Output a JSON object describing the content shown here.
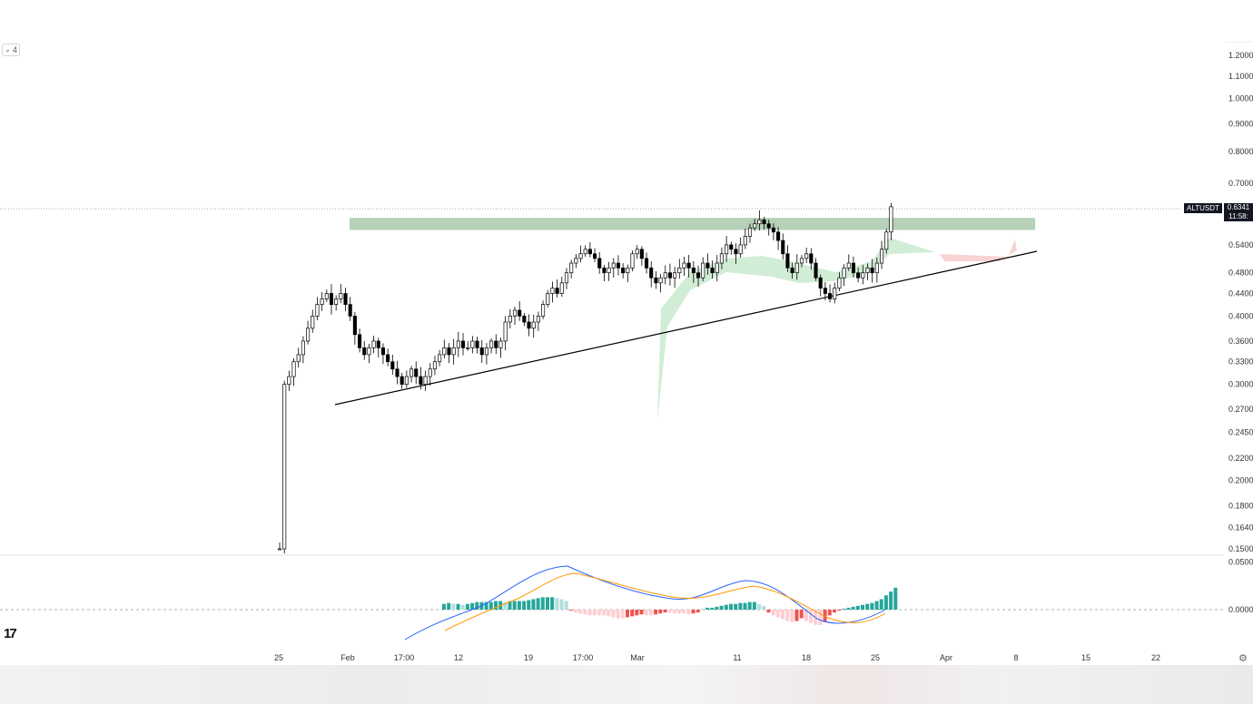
{
  "indicator_button": {
    "count": "4",
    "chevron_icon": "chevron-down-icon"
  },
  "logo": {
    "text": "17",
    "name": "tradingview-logo"
  },
  "price_label": {
    "symbol": "ALTUSDT",
    "price": "0.6341",
    "countdown": "11:58:"
  },
  "settings_icon": "gear-icon",
  "colors": {
    "candle_up": "#ffffff",
    "candle_down": "#000000",
    "resistance_zone": "#a9c9ab",
    "cloud_green": "#bfe5c3",
    "cloud_red": "#f5b5b5",
    "macd_line": "#2962ff",
    "signal_line": "#ff9800",
    "hist_up_strong": "#26a69a",
    "hist_up_weak": "#b2dfdb",
    "hist_down_strong": "#ef5350",
    "hist_down_weak": "#ffcdd2"
  },
  "chart_data": {
    "type": "candlestick",
    "symbol": "ALTUSDT",
    "y_scale": "log",
    "price_axis_labels": [
      "1.2000",
      "1.1000",
      "1.0000",
      "0.9000",
      "0.8000",
      "0.7000",
      "0.5400",
      "0.4800",
      "0.4400",
      "0.4000",
      "0.3600",
      "0.3300",
      "0.3000",
      "0.2700",
      "0.2450",
      "0.2200",
      "0.2000",
      "0.1800",
      "0.1640",
      "0.1500"
    ],
    "macd_axis_labels": [
      "0.0500",
      "0.0000"
    ],
    "time_axis_labels": [
      "25",
      "Feb",
      "17:00",
      "12",
      "19",
      "17:00",
      "Mar",
      "11",
      "18",
      "25",
      "Apr",
      "8",
      "15",
      "22"
    ],
    "last_price": 0.6341,
    "resistance_zone": {
      "low": 0.575,
      "high": 0.605
    },
    "trendline": {
      "start": {
        "date": "Jan 28",
        "price": 0.28
      },
      "end": {
        "date": "Apr 8",
        "price": 0.525
      }
    },
    "closes": [
      0.15,
      0.3,
      0.31,
      0.33,
      0.34,
      0.36,
      0.38,
      0.4,
      0.42,
      0.43,
      0.44,
      0.42,
      0.43,
      0.44,
      0.42,
      0.4,
      0.37,
      0.35,
      0.34,
      0.35,
      0.36,
      0.35,
      0.34,
      0.33,
      0.32,
      0.31,
      0.3,
      0.31,
      0.32,
      0.31,
      0.3,
      0.31,
      0.32,
      0.33,
      0.34,
      0.35,
      0.34,
      0.35,
      0.36,
      0.35,
      0.35,
      0.36,
      0.35,
      0.34,
      0.35,
      0.36,
      0.35,
      0.36,
      0.39,
      0.4,
      0.41,
      0.4,
      0.39,
      0.38,
      0.39,
      0.4,
      0.42,
      0.44,
      0.45,
      0.44,
      0.46,
      0.48,
      0.5,
      0.51,
      0.52,
      0.53,
      0.52,
      0.51,
      0.49,
      0.48,
      0.49,
      0.5,
      0.49,
      0.48,
      0.49,
      0.52,
      0.53,
      0.51,
      0.49,
      0.47,
      0.46,
      0.47,
      0.48,
      0.47,
      0.48,
      0.49,
      0.5,
      0.49,
      0.48,
      0.47,
      0.5,
      0.49,
      0.48,
      0.5,
      0.52,
      0.54,
      0.53,
      0.52,
      0.54,
      0.56,
      0.58,
      0.59,
      0.6,
      0.59,
      0.58,
      0.57,
      0.55,
      0.52,
      0.49,
      0.48,
      0.5,
      0.51,
      0.52,
      0.5,
      0.47,
      0.45,
      0.44,
      0.43,
      0.45,
      0.47,
      0.49,
      0.5,
      0.48,
      0.47,
      0.48,
      0.49,
      0.48,
      0.5,
      0.53,
      0.57,
      0.6341
    ],
    "macd_histogram": [
      0.006,
      0.007,
      0.006,
      0.006,
      0.005,
      0.006,
      0.007,
      0.008,
      0.008,
      0.008,
      0.008,
      0.009,
      0.009,
      0.008,
      0.009,
      0.009,
      0.009,
      0.009,
      0.01,
      0.011,
      0.012,
      0.013,
      0.013,
      0.013,
      0.012,
      0.011,
      0.009,
      -0.001,
      -0.003,
      -0.004,
      -0.005,
      -0.006,
      -0.006,
      -0.006,
      -0.006,
      -0.007,
      -0.008,
      -0.009,
      -0.009,
      -0.008,
      -0.007,
      -0.006,
      -0.005,
      -0.006,
      -0.006,
      -0.005,
      -0.004,
      -0.003,
      -0.003,
      -0.004,
      -0.004,
      -0.004,
      -0.005,
      -0.004,
      -0.003,
      0.001,
      0.002,
      0.002,
      0.003,
      0.004,
      0.005,
      0.006,
      0.006,
      0.007,
      0.007,
      0.008,
      0.008,
      0.006,
      0.004,
      -0.003,
      -0.006,
      -0.008,
      -0.01,
      -0.012,
      -0.013,
      -0.012,
      -0.009,
      -0.012,
      -0.014,
      -0.016,
      -0.016,
      -0.013,
      -0.006,
      -0.003,
      -0.001,
      0.001,
      0.002,
      0.003,
      0.004,
      0.005,
      0.006,
      0.007,
      0.009,
      0.011,
      0.015,
      0.019,
      0.023
    ]
  }
}
